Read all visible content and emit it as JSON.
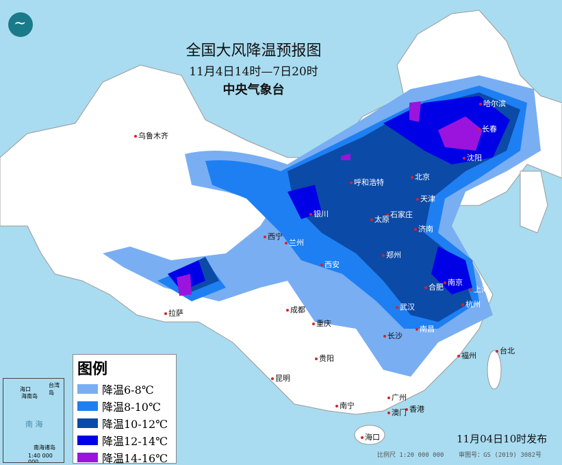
{
  "header": {
    "title": "全国大风降温预报图",
    "period": "11月4日14时—7日20时",
    "agency": "中央气象台"
  },
  "legend": {
    "title": "图例",
    "items": [
      {
        "label": "降温6-8℃",
        "color": "#79aef2"
      },
      {
        "label": "降温8-10℃",
        "color": "#1e7ff2"
      },
      {
        "label": "降温10-12℃",
        "color": "#0b4aa6"
      },
      {
        "label": "降温12-14℃",
        "color": "#0000e6"
      },
      {
        "label": "降温14-16℃",
        "color": "#9a14de"
      }
    ]
  },
  "colors": {
    "sea": "#a9dcf0",
    "land": "#ffffff",
    "border": "#999999"
  },
  "cities": [
    {
      "name": "乌鲁木齐",
      "pos": [
        196,
        190
      ]
    },
    {
      "name": "哈尔滨",
      "pos": [
        700,
        143
      ]
    },
    {
      "name": "长春",
      "pos": [
        698,
        180
      ]
    },
    {
      "name": "沈阳",
      "pos": [
        676,
        222
      ]
    },
    {
      "name": "呼和浩特",
      "pos": [
        511,
        258
      ]
    },
    {
      "name": "北京",
      "pos": [
        600,
        250
      ]
    },
    {
      "name": "天津",
      "pos": [
        608,
        282
      ]
    },
    {
      "name": "石家庄",
      "pos": [
        564,
        305
      ]
    },
    {
      "name": "太原",
      "pos": [
        541,
        312
      ]
    },
    {
      "name": "银川",
      "pos": [
        452,
        304
      ]
    },
    {
      "name": "济南",
      "pos": [
        605,
        326
      ]
    },
    {
      "name": "西宁",
      "pos": [
        385,
        337
      ]
    },
    {
      "name": "兰州",
      "pos": [
        416,
        346
      ]
    },
    {
      "name": "西安",
      "pos": [
        468,
        378
      ]
    },
    {
      "name": "郑州",
      "pos": [
        558,
        364
      ]
    },
    {
      "name": "合肥",
      "pos": [
        620,
        411
      ]
    },
    {
      "name": "南京",
      "pos": [
        648,
        404
      ]
    },
    {
      "name": "上海",
      "pos": [
        686,
        414
      ]
    },
    {
      "name": "杭州",
      "pos": [
        674,
        436
      ]
    },
    {
      "name": "武汉",
      "pos": [
        578,
        440
      ]
    },
    {
      "name": "南昌",
      "pos": [
        607,
        472
      ]
    },
    {
      "name": "长沙",
      "pos": [
        560,
        482
      ]
    },
    {
      "name": "成都",
      "pos": [
        418,
        444
      ]
    },
    {
      "name": "重庆",
      "pos": [
        456,
        464
      ]
    },
    {
      "name": "拉萨",
      "pos": [
        240,
        449
      ]
    },
    {
      "name": "贵阳",
      "pos": [
        460,
        515
      ]
    },
    {
      "name": "昆明",
      "pos": [
        396,
        544
      ]
    },
    {
      "name": "福州",
      "pos": [
        668,
        511
      ]
    },
    {
      "name": "台北",
      "pos": [
        724,
        504
      ]
    },
    {
      "name": "南宁",
      "pos": [
        490,
        584
      ]
    },
    {
      "name": "广州",
      "pos": [
        566,
        572
      ]
    },
    {
      "name": "香港",
      "pos": [
        592,
        589
      ]
    },
    {
      "name": "澳门",
      "pos": [
        566,
        594
      ]
    },
    {
      "name": "海口",
      "pos": [
        527,
        630
      ]
    }
  ],
  "inset": {
    "sea_label": "南  海",
    "island": "海南岛",
    "city": "海口",
    "south": "南海诸岛",
    "taiwan": "台湾岛",
    "scale": "1:40 000 000"
  },
  "footer": {
    "published": "11月04日10时发布",
    "scale": "比例尺 1:20 000 000",
    "map_no": "审图号：GS (2019) 3082号"
  }
}
